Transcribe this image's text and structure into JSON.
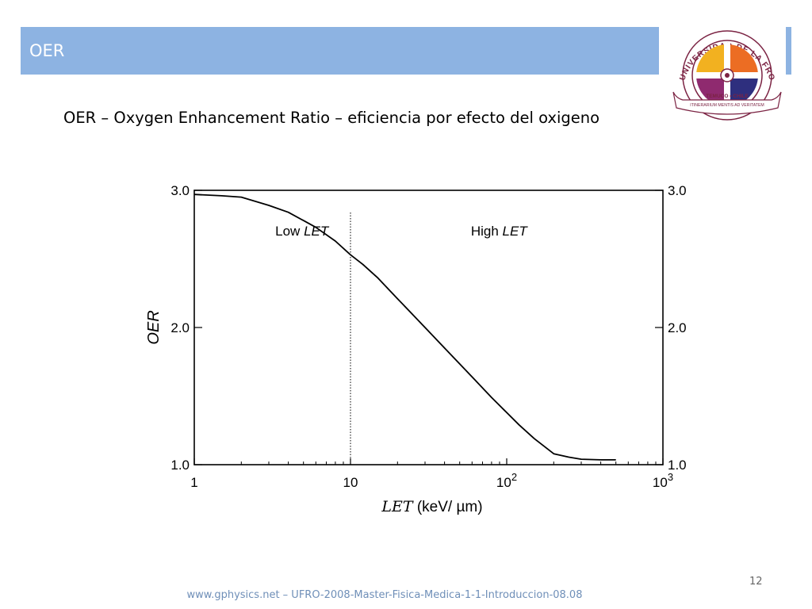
{
  "slide": {
    "title": "OER",
    "subtitle": "OER – Oxygen Enhancement Ratio – eficiencia por efecto del oxigeno",
    "page_number": "12",
    "footer": "www.gphysics.net – UFRO-2008-Master-Fisica-Medica-1-1-Introduccion-08.08"
  },
  "logo": {
    "arc_text": "UNIVERSIDAD DE LA FRONTERA",
    "city": "TEMUCO • CHILE",
    "motto": "ITINERARIUM MENTIS AD VERITATEM",
    "colors": {
      "yellow": "#f2b120",
      "orange": "#ec6d23",
      "purple": "#8f2a6f",
      "navy": "#2e2f7e",
      "ring": "#7b2343"
    }
  },
  "chart_data": {
    "type": "line",
    "x_scale": "log",
    "xlim": [
      1,
      1000
    ],
    "ylim": [
      1.0,
      3.0
    ],
    "x_ticks": [
      {
        "value": 1,
        "label": "1"
      },
      {
        "value": 10,
        "label": "10"
      },
      {
        "value": 100,
        "label": "10",
        "exp": "2"
      },
      {
        "value": 1000,
        "label": "10",
        "exp": "3"
      }
    ],
    "y_ticks": [
      {
        "value": 1.0,
        "label": "1.0"
      },
      {
        "value": 2.0,
        "label": "2.0"
      },
      {
        "value": 3.0,
        "label": "3.0"
      }
    ],
    "xlabel_italic": "LET",
    "xlabel_units": " (keV/ µm)",
    "ylabel": "OER",
    "divider_x": 10,
    "annotations": [
      {
        "text": "Low ",
        "italic": "LET",
        "x": 3.3,
        "y": 2.67
      },
      {
        "text": "High ",
        "italic": "LET",
        "x": 59,
        "y": 2.67
      }
    ],
    "series": [
      {
        "x": [
          1,
          1.5,
          2,
          3,
          4,
          5,
          6,
          8,
          10,
          12,
          15,
          20,
          30,
          40,
          60,
          80,
          100,
          120,
          150,
          200,
          250,
          300,
          400,
          500
        ],
        "y": [
          2.97,
          2.96,
          2.95,
          2.89,
          2.84,
          2.78,
          2.73,
          2.63,
          2.53,
          2.46,
          2.36,
          2.21,
          2.0,
          1.85,
          1.64,
          1.49,
          1.38,
          1.29,
          1.19,
          1.08,
          1.055,
          1.04,
          1.035,
          1.035
        ]
      }
    ],
    "colors": {
      "line": "#000000"
    }
  }
}
